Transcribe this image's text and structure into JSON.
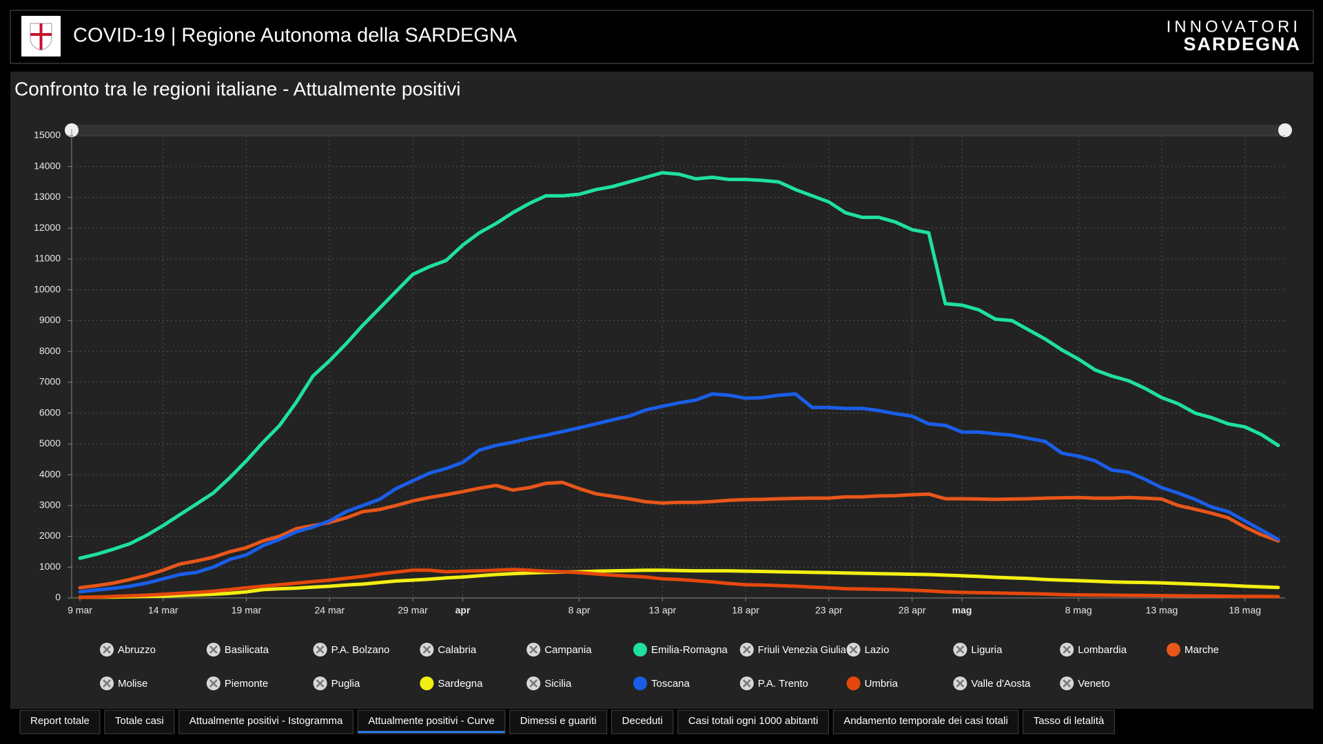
{
  "header": {
    "title": "COVID-19 | Regione Autonoma della SARDEGNA",
    "logo_top": "INNOVATORI",
    "logo_bottom": "SARDEGNA"
  },
  "chart_data": {
    "type": "line",
    "title": "Confronto tra le regioni italiane - Attualmente positivi",
    "categories": [
      "9 mar",
      null,
      null,
      null,
      null,
      "14 mar",
      null,
      null,
      null,
      null,
      "19 mar",
      null,
      null,
      null,
      null,
      "24 mar",
      null,
      null,
      null,
      null,
      "29 mar",
      null,
      null,
      "apr",
      null,
      null,
      null,
      null,
      null,
      null,
      "8 apr",
      null,
      null,
      null,
      null,
      "13 apr",
      null,
      null,
      null,
      null,
      "18 apr",
      null,
      null,
      null,
      null,
      "23 apr",
      null,
      null,
      null,
      null,
      "28 apr",
      null,
      null,
      "mag",
      null,
      null,
      null,
      null,
      null,
      null,
      "8 mag",
      null,
      null,
      null,
      null,
      "13 mag",
      null,
      null,
      null,
      null,
      "18 mag",
      null,
      null
    ],
    "ylim": [
      0,
      15000
    ],
    "yticks": [
      0,
      1000,
      2000,
      3000,
      4000,
      5000,
      6000,
      7000,
      8000,
      9000,
      10000,
      11000,
      12000,
      13000,
      14000,
      15000
    ],
    "grid": true,
    "series": [
      {
        "name": "Abruzzo",
        "hidden": true
      },
      {
        "name": "Basilicata",
        "hidden": true
      },
      {
        "name": "P.A. Bolzano",
        "hidden": true
      },
      {
        "name": "Calabria",
        "hidden": true
      },
      {
        "name": "Campania",
        "hidden": true
      },
      {
        "name": "Emilia-Romagna",
        "color": "#1fe0a0",
        "values": [
          1290,
          1420,
          1580,
          1760,
          2030,
          2350,
          2700,
          3050,
          3400,
          3900,
          4450,
          5050,
          5600,
          6350,
          7200,
          7700,
          8250,
          8850,
          9400,
          9950,
          10500,
          10750,
          10950,
          11450,
          11850,
          12150,
          12500,
          12800,
          13050,
          13050,
          13100,
          13250,
          13350,
          13500,
          13650,
          13800,
          13750,
          13600,
          13650,
          13580,
          13580,
          13550,
          13500,
          13250,
          13050,
          12850,
          12500,
          12350,
          12350,
          12200,
          11950,
          11850,
          9550,
          9500,
          9350,
          9050,
          9000,
          8700,
          8400,
          8050,
          7750,
          7400,
          7200,
          7050,
          6800,
          6500,
          6300,
          6000,
          5850,
          5650,
          5550,
          5300,
          4950
        ]
      },
      {
        "name": "Friuli Venezia Giulia",
        "hidden": true
      },
      {
        "name": "Lazio",
        "hidden": true
      },
      {
        "name": "Liguria",
        "hidden": true
      },
      {
        "name": "Lombardia",
        "hidden": true
      },
      {
        "name": "Marche",
        "color": "#e8561a",
        "values": [
          330,
          400,
          480,
          600,
          730,
          900,
          1100,
          1200,
          1320,
          1500,
          1630,
          1850,
          2000,
          2250,
          2350,
          2450,
          2600,
          2800,
          2870,
          3000,
          3150,
          3260,
          3350,
          3450,
          3560,
          3650,
          3500,
          3580,
          3720,
          3750,
          3550,
          3380,
          3300,
          3220,
          3120,
          3080,
          3100,
          3100,
          3130,
          3170,
          3190,
          3200,
          3220,
          3230,
          3240,
          3240,
          3280,
          3280,
          3310,
          3320,
          3350,
          3370,
          3220,
          3220,
          3210,
          3200,
          3210,
          3220,
          3240,
          3250,
          3260,
          3240,
          3240,
          3260,
          3240,
          3210,
          3000,
          2880,
          2750,
          2600,
          2300,
          2050,
          1850
        ]
      },
      {
        "name": "Molise",
        "hidden": true
      },
      {
        "name": "Piemonte",
        "hidden": true
      },
      {
        "name": "Puglia",
        "hidden": true
      },
      {
        "name": "Sardegna",
        "color": "#f2ee12",
        "values": [
          20,
          25,
          30,
          40,
          50,
          60,
          80,
          100,
          120,
          150,
          200,
          270,
          300,
          320,
          350,
          380,
          420,
          450,
          500,
          550,
          580,
          610,
          650,
          680,
          720,
          760,
          790,
          810,
          830,
          840,
          850,
          870,
          880,
          890,
          900,
          900,
          890,
          880,
          880,
          880,
          870,
          860,
          850,
          840,
          830,
          820,
          810,
          800,
          790,
          780,
          770,
          760,
          740,
          720,
          700,
          670,
          650,
          630,
          600,
          580,
          560,
          540,
          520,
          510,
          500,
          490,
          470,
          450,
          430,
          410,
          380,
          360,
          340
        ]
      },
      {
        "name": "Sicilia",
        "hidden": true
      },
      {
        "name": "Toscana",
        "color": "#1a5ee8",
        "values": [
          200,
          260,
          310,
          380,
          480,
          620,
          760,
          830,
          1000,
          1250,
          1400,
          1700,
          1900,
          2150,
          2300,
          2500,
          2800,
          3000,
          3200,
          3550,
          3800,
          4050,
          4200,
          4400,
          4800,
          4950,
          5050,
          5180,
          5280,
          5400,
          5520,
          5650,
          5780,
          5900,
          6100,
          6220,
          6330,
          6420,
          6620,
          6580,
          6480,
          6500,
          6580,
          6620,
          6180,
          6180,
          6150,
          6150,
          6080,
          5980,
          5900,
          5650,
          5600,
          5380,
          5380,
          5330,
          5280,
          5180,
          5080,
          4700,
          4600,
          4450,
          4150,
          4080,
          3850,
          3580,
          3400,
          3200,
          2950,
          2800,
          2500,
          2200,
          1900
        ]
      },
      {
        "name": "P.A. Trento",
        "hidden": true
      },
      {
        "name": "Umbria",
        "color": "#e5480c",
        "values": [
          20,
          30,
          50,
          70,
          90,
          120,
          150,
          180,
          220,
          270,
          330,
          380,
          430,
          480,
          530,
          580,
          640,
          700,
          780,
          840,
          900,
          900,
          850,
          870,
          880,
          900,
          920,
          900,
          870,
          850,
          820,
          780,
          740,
          710,
          680,
          620,
          600,
          560,
          520,
          470,
          430,
          420,
          400,
          380,
          350,
          330,
          300,
          290,
          280,
          270,
          250,
          230,
          200,
          180,
          170,
          160,
          150,
          140,
          130,
          110,
          100,
          95,
          90,
          85,
          80,
          75,
          70,
          65,
          60,
          55,
          50,
          50,
          45
        ]
      },
      {
        "name": "Valle d'Aosta",
        "hidden": true
      },
      {
        "name": "Veneto",
        "hidden": true
      }
    ]
  },
  "tabs": {
    "items": [
      "Report totale",
      "Totale casi",
      "Attualmente positivi - Istogramma",
      "Attualmente positivi - Curve",
      "Dimessi e guariti",
      "Deceduti",
      "Casi totali ogni 1000 abitanti",
      "Andamento temporale dei casi totali",
      "Tasso di letalità"
    ],
    "active": 3
  }
}
